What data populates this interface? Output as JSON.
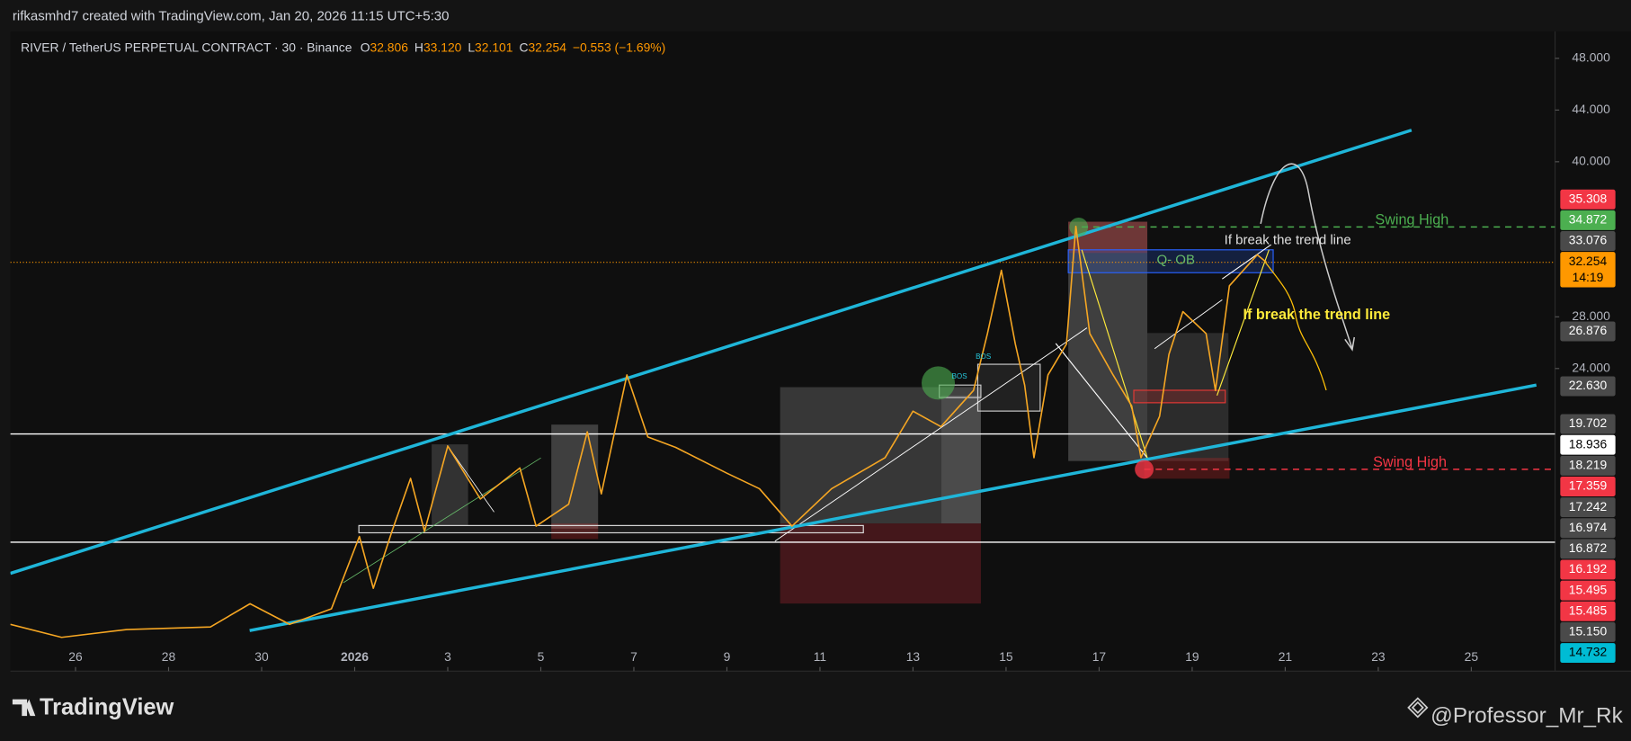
{
  "chart_data": {
    "type": "line",
    "header": "rifkasmhd7 created with TradingView.com, Jan 20, 2026 11:15 UTC+5:30",
    "symbol": "RIVER / TetherUS PERPETUAL CONTRACT · 30 · Binance",
    "ohlc": [
      {
        "key": "O",
        "label": "32.806"
      },
      {
        "key": "H",
        "label": "33.120"
      },
      {
        "key": "L",
        "label": "32.101"
      },
      {
        "key": "C",
        "label": "32.254"
      }
    ],
    "change": "−0.553 (−1.69%)",
    "color": "#f5a623",
    "x": [
      24.6,
      25.7,
      27.1,
      28.9,
      29.75,
      30.6,
      31.5,
      32.1,
      32.4,
      32.8,
      33.2,
      33.5,
      34.0,
      34.7,
      35.55,
      35.9,
      36.6,
      37.0,
      37.3,
      37.85,
      38.3,
      38.9,
      40.0,
      40.7,
      41.4,
      42.25,
      43.4,
      44.0,
      44.6,
      45.3,
      45.6,
      45.9,
      46.2,
      46.4,
      46.6,
      46.9,
      47.3,
      47.5,
      47.8,
      48.3,
      48.7,
      48.9,
      49.3,
      49.5,
      49.8,
      50.3,
      50.5,
      50.8,
      51.2,
      51.4,
      51.6
    ],
    "values": [
      4.2,
      3.2,
      3.8,
      4.0,
      5.8,
      4.2,
      5.4,
      11.0,
      7.0,
      11.4,
      15.5,
      11.4,
      18.0,
      13.9,
      16.3,
      11.8,
      13.5,
      19.1,
      14.3,
      23.5,
      18.7,
      17.9,
      15.9,
      14.7,
      11.8,
      14.7,
      17.1,
      20.7,
      19.5,
      22.3,
      26.7,
      31.6,
      25.9,
      22.7,
      17.1,
      23.5,
      25.9,
      35.0,
      26.7,
      23.5,
      21.1,
      17.1,
      20.3,
      25.1,
      28.4,
      26.7,
      22.3,
      30.4,
      32.0,
      32.8,
      32.2
    ],
    "xlim": [
      24.6,
      57.8
    ],
    "ylim": [
      0.58,
      50.09
    ],
    "xticks": [
      26,
      28,
      30,
      {
        "value": 32,
        "label": "2026"
      },
      {
        "value": 34,
        "label": "3"
      },
      {
        "value": 36,
        "label": "5"
      },
      {
        "value": 38,
        "label": "7"
      },
      {
        "value": 40,
        "label": "9"
      },
      {
        "value": 42,
        "label": "11"
      },
      {
        "value": 44,
        "label": "13"
      },
      {
        "value": 46,
        "label": "15"
      },
      {
        "value": 48,
        "label": "17"
      },
      {
        "value": 50,
        "label": "19"
      },
      {
        "value": 52,
        "label": "21"
      },
      {
        "value": 54,
        "label": "23"
      },
      {
        "value": 56,
        "label": "25"
      }
    ],
    "yticks": [
      {
        "value": 48,
        "label": "48.000"
      },
      {
        "value": 44,
        "label": "44.000"
      },
      {
        "value": 40,
        "label": "40.000"
      },
      {
        "value": 28,
        "label": "28.000"
      },
      {
        "value": 24,
        "label": "24.000"
      }
    ],
    "price_labels": [
      {
        "value": 35.308,
        "label": "35.308",
        "color": "#f23645",
        "text_color": "#ffffff"
      },
      {
        "value": 34.872,
        "label": "34.872",
        "color": "#4caf50",
        "text_color": "#ffffff"
      },
      {
        "value": 33.076,
        "label": "33.076",
        "color": "#4a4a4a",
        "text_color": "#ffffff"
      },
      {
        "value": 32.254,
        "label": "32.254",
        "color": "#ff9800",
        "text_color": "#000000",
        "countdown": "14:19"
      },
      {
        "value": 26.876,
        "label": "26.876",
        "color": "#4a4a4a",
        "text_color": "#ffffff"
      },
      {
        "value": 22.63,
        "label": "22.630",
        "color": "#4a4a4a",
        "text_color": "#ffffff"
      },
      {
        "value": 19.702,
        "label": "19.702",
        "color": "#4a4a4a",
        "text_color": "#ffffff"
      },
      {
        "value": 18.936,
        "label": "18.936",
        "color": "#ffffff",
        "text_color": "#000000"
      },
      {
        "value": 18.219,
        "label": "18.219",
        "color": "#4a4a4a",
        "text_color": "#ffffff"
      },
      {
        "value": 17.359,
        "label": "17.359",
        "color": "#f23645",
        "text_color": "#ffffff"
      },
      {
        "value": 17.242,
        "label": "17.242",
        "color": "#4a4a4a",
        "text_color": "#ffffff"
      },
      {
        "value": 16.974,
        "label": "16.974",
        "color": "#4a4a4a",
        "text_color": "#ffffff"
      },
      {
        "value": 16.872,
        "label": "16.872",
        "color": "#4a4a4a",
        "text_color": "#ffffff"
      },
      {
        "value": 16.192,
        "label": "16.192",
        "color": "#f23645",
        "text_color": "#ffffff"
      },
      {
        "value": 15.495,
        "label": "15.495",
        "color": "#f23645",
        "text_color": "#ffffff"
      },
      {
        "value": 15.485,
        "label": "15.485",
        "color": "#f23645",
        "text_color": "#ffffff"
      },
      {
        "value": 15.15,
        "label": "15.150",
        "color": "#4a4a4a",
        "text_color": "#ffffff"
      },
      {
        "value": 14.732,
        "label": "14.732",
        "color": "#00bcd4",
        "text_color": "#000000"
      }
    ],
    "annotations": [
      {
        "text": "If break the trend line",
        "color": "#e0e0e0"
      },
      {
        "text": "Q- OB",
        "color": "#66bb6a"
      },
      {
        "text": "Swing High",
        "color": "#4caf50"
      },
      {
        "text": "If break the trend line",
        "color": "#ffeb3b"
      },
      {
        "text": "Swing High",
        "color": "#f23645"
      },
      {
        "text": "BOS",
        "color": "#26c6da"
      },
      {
        "text": "BOS",
        "color": "#26c6da"
      }
    ],
    "footer": {
      "logo": "TradingView",
      "author": "@Professor_Mr_Rk"
    }
  }
}
